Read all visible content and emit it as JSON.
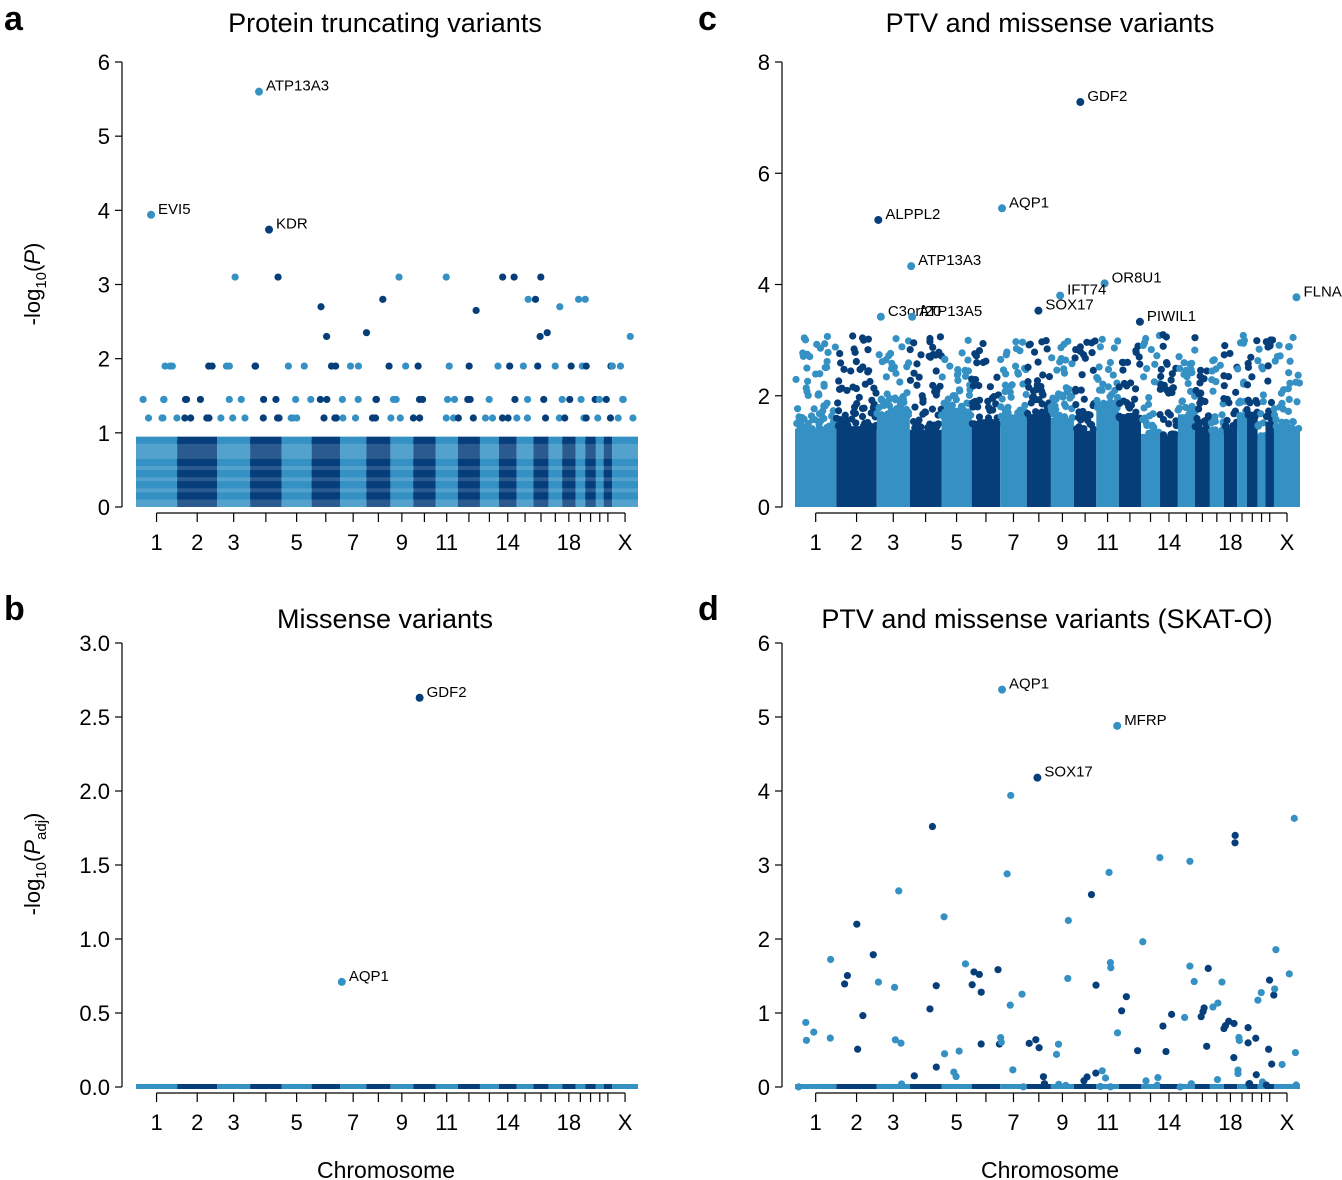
{
  "colors": {
    "light": "#3591c4",
    "dark": "#063e7a"
  },
  "x_axis_label": "Chromosome",
  "chart_data": [
    {
      "id": "a",
      "panel_label": "a",
      "type": "scatter",
      "title": "Protein truncating variants",
      "ylabel_parts": [
        "-log",
        "10",
        "(",
        "P",
        ")"
      ],
      "ylim": [
        0,
        6
      ],
      "yticks": [
        "0",
        "1",
        "2",
        "3",
        "4",
        "5",
        "6"
      ],
      "chromosome_tick_labels": [
        "1",
        "2",
        "3",
        "5",
        "7",
        "9",
        "11",
        "14",
        "18",
        "X"
      ],
      "background": {
        "max": 1.9,
        "levels": [
          0.15,
          0.3,
          0.45,
          0.6,
          0.9,
          1.2,
          1.45,
          1.9
        ],
        "discrete": true,
        "outliers": [
          2.7,
          2.8,
          3.1,
          2.35,
          2.3,
          2.8,
          3.1,
          2.35,
          2.8,
          3.1,
          2.3,
          2.8,
          3.1,
          2.7,
          3.1,
          2.3,
          2.65,
          2.8,
          3.1,
          3.1
        ]
      },
      "annotations": [
        {
          "label": "ATP13A3",
          "x": 0.245,
          "y": 5.6,
          "color": "light"
        },
        {
          "label": "EVI5",
          "x": 0.03,
          "y": 3.94,
          "color": "light"
        },
        {
          "label": "KDR",
          "x": 0.265,
          "y": 3.74,
          "color": "dark"
        }
      ]
    },
    {
      "id": "b",
      "panel_label": "b",
      "type": "scatter",
      "title": "Missense variants",
      "ylabel_parts": [
        "-log",
        "10",
        "(",
        "P",
        "adj",
        ")"
      ],
      "ylim": [
        0,
        3.0
      ],
      "yticks": [
        "0.0",
        "0.5",
        "1.0",
        "1.5",
        "2.0",
        "2.5",
        "3.0"
      ],
      "chromosome_tick_labels": [
        "1",
        "2",
        "3",
        "5",
        "7",
        "9",
        "11",
        "14",
        "18",
        "X"
      ],
      "background": {
        "max": 0.0,
        "flat": true
      },
      "annotations": [
        {
          "label": "GDF2",
          "x": 0.565,
          "y": 2.63,
          "color": "dark"
        },
        {
          "label": "AQP1",
          "x": 0.41,
          "y": 0.71,
          "color": "light"
        }
      ]
    },
    {
      "id": "c",
      "panel_label": "c",
      "type": "scatter",
      "title": "PTV and missense variants",
      "ylabel_parts": [],
      "ylim": [
        0,
        8
      ],
      "yticks": [
        "0",
        "2",
        "4",
        "6",
        "8"
      ],
      "chromosome_tick_labels": [
        "1",
        "2",
        "3",
        "5",
        "7",
        "9",
        "11",
        "14",
        "18",
        "X"
      ],
      "background": {
        "max": 3.1,
        "dense": true
      },
      "annotations": [
        {
          "label": "GDF2",
          "x": 0.565,
          "y": 7.28,
          "color": "dark"
        },
        {
          "label": "AQP1",
          "x": 0.41,
          "y": 5.37,
          "color": "light"
        },
        {
          "label": "ALPPL2",
          "x": 0.165,
          "y": 5.16,
          "color": "dark"
        },
        {
          "label": "ATP13A3",
          "x": 0.23,
          "y": 4.33,
          "color": "light"
        },
        {
          "label": "OR8U1",
          "x": 0.613,
          "y": 4.02,
          "color": "light"
        },
        {
          "label": "IFT74",
          "x": 0.525,
          "y": 3.8,
          "color": "light"
        },
        {
          "label": "FLNA",
          "x": 0.993,
          "y": 3.77,
          "color": "light"
        },
        {
          "label": "C3orf20",
          "x": 0.17,
          "y": 3.42,
          "color": "light"
        },
        {
          "label": "ATP13A5",
          "x": 0.232,
          "y": 3.42,
          "color": "light"
        },
        {
          "label": "SOX17",
          "x": 0.482,
          "y": 3.53,
          "color": "dark"
        },
        {
          "label": "PIWIL1",
          "x": 0.683,
          "y": 3.33,
          "color": "dark"
        }
      ]
    },
    {
      "id": "d",
      "panel_label": "d",
      "type": "scatter",
      "title": "PTV and missense variants (SKAT-O)",
      "ylabel_parts": [],
      "ylim": [
        0,
        6
      ],
      "yticks": [
        "0",
        "1",
        "2",
        "3",
        "4",
        "5",
        "6"
      ],
      "chromosome_tick_labels": [
        "1",
        "2",
        "3",
        "5",
        "7",
        "9",
        "11",
        "14",
        "18",
        "X"
      ],
      "background": {
        "max": 3.9,
        "sparse": true,
        "outliers": [
          3.63,
          3.3,
          3.52,
          3.4,
          3.1,
          3.05,
          2.9,
          2.88,
          2.65,
          2.6,
          2.3,
          2.25,
          2.2,
          3.94
        ]
      },
      "annotations": [
        {
          "label": "AQP1",
          "x": 0.41,
          "y": 5.37,
          "color": "light"
        },
        {
          "label": "MFRP",
          "x": 0.638,
          "y": 4.88,
          "color": "light"
        },
        {
          "label": "SOX17",
          "x": 0.48,
          "y": 4.18,
          "color": "dark"
        }
      ]
    }
  ]
}
